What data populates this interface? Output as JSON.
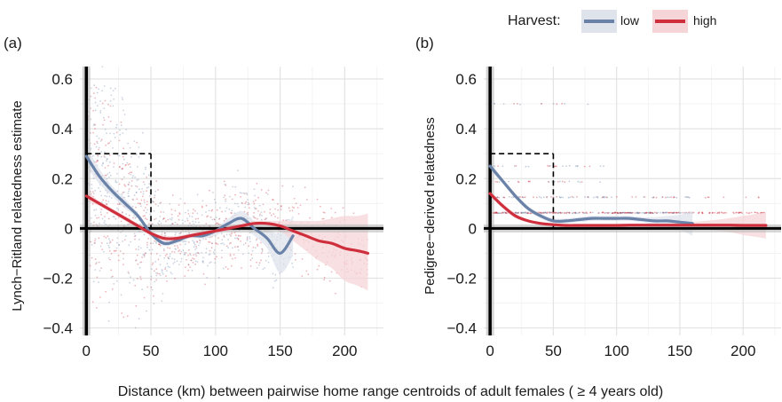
{
  "figure": {
    "xlabel": "Distance (km) between pairwise home range centroids of adult females ( ≥ 4 years old)",
    "legend": {
      "title": "Harvest:",
      "entries": [
        {
          "label": "low",
          "color": "#6a82a8",
          "fill": "#dfe4ec"
        },
        {
          "label": "high",
          "color": "#cf2f3c",
          "fill": "#f6d5d8"
        }
      ]
    }
  },
  "chart_data": [
    {
      "type": "scatter",
      "panel_label": "(a)",
      "title": "",
      "xlabel": "",
      "ylabel": "Lynch−Ritland relatedness estimate",
      "xlim": [
        -5,
        230
      ],
      "ylim": [
        -0.43,
        0.65
      ],
      "x_ticks": [
        0,
        50,
        100,
        150,
        200
      ],
      "x_tick_labels": [
        "0",
        "50",
        "100",
        "150",
        "200"
      ],
      "y_ticks": [
        -0.4,
        -0.2,
        0,
        0.2,
        0.4,
        0.6
      ],
      "y_tick_labels": [
        "−0.4",
        "−0.2",
        "0",
        "0.2",
        "0.4",
        "0.6"
      ],
      "grid": true,
      "reference_box": {
        "x": [
          0,
          50
        ],
        "y": [
          0,
          0.3
        ]
      },
      "series": [
        {
          "name": "low",
          "color": "#6a82a8",
          "x": [
            0,
            10,
            20,
            30,
            40,
            50,
            60,
            70,
            80,
            90,
            100,
            110,
            120,
            130,
            140,
            150,
            160
          ],
          "y": [
            0.29,
            0.21,
            0.15,
            0.1,
            0.05,
            -0.02,
            -0.06,
            -0.05,
            -0.03,
            -0.03,
            -0.01,
            0.02,
            0.04,
            0.0,
            -0.04,
            -0.1,
            -0.03
          ],
          "ci_upper": [
            0.33,
            0.24,
            0.17,
            0.12,
            0.06,
            -0.01,
            -0.05,
            -0.04,
            -0.02,
            -0.02,
            0.0,
            0.04,
            0.07,
            0.03,
            0.0,
            -0.02,
            0.05
          ],
          "ci_lower": [
            0.25,
            0.18,
            0.13,
            0.08,
            0.04,
            -0.03,
            -0.07,
            -0.06,
            -0.04,
            -0.04,
            -0.03,
            0.0,
            0.01,
            -0.03,
            -0.08,
            -0.18,
            -0.11
          ]
        },
        {
          "name": "high",
          "color": "#cf2f3c",
          "x": [
            0,
            10,
            20,
            30,
            40,
            50,
            60,
            70,
            80,
            90,
            100,
            110,
            120,
            130,
            140,
            150,
            160,
            170,
            180,
            190,
            200,
            210,
            218
          ],
          "y": [
            0.13,
            0.1,
            0.07,
            0.04,
            0.01,
            -0.02,
            -0.04,
            -0.04,
            -0.03,
            -0.02,
            -0.01,
            0.0,
            0.01,
            0.02,
            0.02,
            0.01,
            -0.01,
            -0.03,
            -0.05,
            -0.06,
            -0.08,
            -0.09,
            -0.1
          ],
          "ci_upper": [
            0.15,
            0.11,
            0.08,
            0.05,
            0.02,
            -0.01,
            -0.03,
            -0.03,
            -0.02,
            -0.01,
            0.0,
            0.01,
            0.02,
            0.03,
            0.03,
            0.03,
            0.03,
            0.03,
            0.03,
            0.04,
            0.05,
            0.05,
            0.06
          ],
          "ci_lower": [
            0.11,
            0.09,
            0.06,
            0.03,
            0.0,
            -0.03,
            -0.05,
            -0.05,
            -0.04,
            -0.03,
            -0.02,
            -0.01,
            0.0,
            0.01,
            0.01,
            -0.01,
            -0.05,
            -0.09,
            -0.13,
            -0.16,
            -0.21,
            -0.23,
            -0.25
          ]
        }
      ]
    },
    {
      "type": "scatter",
      "panel_label": "(b)",
      "title": "",
      "xlabel": "",
      "ylabel": "Pedigree−derived relatedness",
      "xlim": [
        -5,
        230
      ],
      "ylim": [
        -0.43,
        0.65
      ],
      "x_ticks": [
        0,
        50,
        100,
        150,
        200
      ],
      "x_tick_labels": [
        "0",
        "50",
        "100",
        "150",
        "200"
      ],
      "y_ticks": [
        -0.4,
        -0.2,
        0,
        0.2,
        0.4,
        0.6
      ],
      "y_tick_labels": [
        "−0.4",
        "−0.2",
        "0",
        "0.2",
        "0.4",
        "0.6"
      ],
      "grid": true,
      "reference_box": {
        "x": [
          0,
          50
        ],
        "y": [
          0,
          0.3
        ]
      },
      "series": [
        {
          "name": "low",
          "color": "#6a82a8",
          "x": [
            0,
            10,
            20,
            30,
            40,
            50,
            60,
            70,
            80,
            90,
            100,
            110,
            120,
            130,
            140,
            150,
            160
          ],
          "y": [
            0.25,
            0.19,
            0.13,
            0.08,
            0.05,
            0.03,
            0.03,
            0.035,
            0.04,
            0.04,
            0.04,
            0.04,
            0.035,
            0.03,
            0.03,
            0.025,
            0.02
          ],
          "ci_upper": [
            0.27,
            0.2,
            0.14,
            0.09,
            0.06,
            0.04,
            0.04,
            0.045,
            0.05,
            0.05,
            0.05,
            0.05,
            0.045,
            0.045,
            0.05,
            0.055,
            0.07
          ],
          "ci_lower": [
            0.23,
            0.18,
            0.12,
            0.07,
            0.04,
            0.02,
            0.02,
            0.025,
            0.03,
            0.03,
            0.03,
            0.03,
            0.025,
            0.015,
            0.01,
            -0.005,
            -0.03
          ]
        },
        {
          "name": "high",
          "color": "#cf2f3c",
          "x": [
            0,
            10,
            20,
            30,
            40,
            50,
            60,
            70,
            80,
            90,
            100,
            110,
            120,
            130,
            140,
            150,
            160,
            170,
            180,
            190,
            200,
            210,
            218
          ],
          "y": [
            0.14,
            0.09,
            0.05,
            0.03,
            0.02,
            0.015,
            0.012,
            0.012,
            0.012,
            0.012,
            0.012,
            0.013,
            0.013,
            0.013,
            0.013,
            0.013,
            0.013,
            0.013,
            0.013,
            0.013,
            0.012,
            0.012,
            0.012
          ],
          "ci_upper": [
            0.15,
            0.1,
            0.06,
            0.035,
            0.025,
            0.02,
            0.017,
            0.017,
            0.017,
            0.017,
            0.017,
            0.018,
            0.018,
            0.019,
            0.02,
            0.022,
            0.025,
            0.03,
            0.035,
            0.042,
            0.05,
            0.058,
            0.065
          ],
          "ci_lower": [
            0.13,
            0.08,
            0.04,
            0.025,
            0.015,
            0.01,
            0.007,
            0.007,
            0.007,
            0.007,
            0.007,
            0.008,
            0.008,
            0.007,
            0.006,
            0.004,
            0.001,
            -0.004,
            -0.009,
            -0.016,
            -0.026,
            -0.034,
            -0.041
          ]
        }
      ]
    }
  ]
}
